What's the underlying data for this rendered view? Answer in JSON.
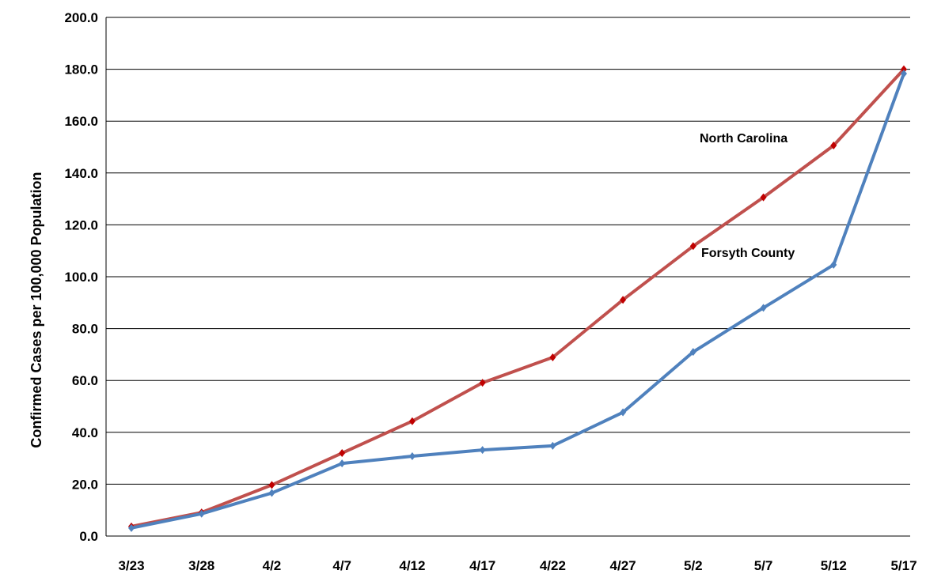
{
  "chart_data": {
    "type": "line",
    "title": "",
    "xlabel": "",
    "ylabel": "Confirmed Cases per 100,000 Population",
    "categories": [
      "3/23",
      "3/28",
      "4/2",
      "4/7",
      "4/12",
      "4/17",
      "4/22",
      "4/27",
      "5/2",
      "5/7",
      "5/12",
      "5/17"
    ],
    "ylim": [
      0,
      200
    ],
    "yticks": [
      "0.0",
      "20.0",
      "40.0",
      "60.0",
      "80.0",
      "100.0",
      "120.0",
      "140.0",
      "160.0",
      "180.0",
      "200.0"
    ],
    "grid": true,
    "series": [
      {
        "name": "North Carolina",
        "color": "#c0504d",
        "marker_color": "#c00000",
        "values": [
          3.7,
          9.1,
          19.7,
          32.0,
          44.3,
          59.1,
          68.9,
          91.1,
          111.8,
          130.6,
          150.6,
          180.0
        ]
      },
      {
        "name": "Forsyth County",
        "color": "#4f81bd",
        "marker_color": "#4f81bd",
        "values": [
          3.1,
          8.6,
          16.6,
          28.0,
          30.8,
          33.2,
          34.8,
          47.7,
          71.0,
          88.0,
          104.6,
          178.3
        ]
      }
    ]
  }
}
